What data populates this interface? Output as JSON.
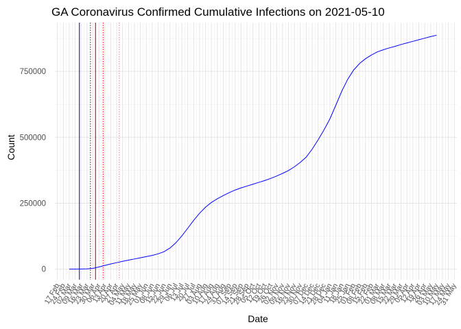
{
  "chart_data": {
    "type": "line",
    "title": "GA Coronavirus Confirmed Cumulative Infections on 2021-05-10",
    "xlabel": "Date",
    "ylabel": "Count",
    "grid": true,
    "legend": "none",
    "xlim": [
      "2020-02-14",
      "2021-06-03"
    ],
    "ylim": [
      -40000,
      935000
    ],
    "y_ticks": [
      0,
      250000,
      500000,
      750000
    ],
    "y_tick_labels": [
      "0",
      "250000",
      "500000",
      "750000"
    ],
    "x_ticks": [
      "2020-02-17",
      "2020-02-24",
      "2020-03-02",
      "2020-03-09",
      "2020-03-16",
      "2020-03-23",
      "2020-03-30",
      "2020-04-06",
      "2020-04-13",
      "2020-04-20",
      "2020-04-27",
      "2020-05-04",
      "2020-05-11",
      "2020-05-18",
      "2020-05-25",
      "2020-06-01",
      "2020-06-08",
      "2020-06-15",
      "2020-06-22",
      "2020-06-29",
      "2020-07-06",
      "2020-07-13",
      "2020-07-20",
      "2020-07-27",
      "2020-08-03",
      "2020-08-10",
      "2020-08-17",
      "2020-08-24",
      "2020-08-31",
      "2020-09-07",
      "2020-09-14",
      "2020-09-21",
      "2020-09-28",
      "2020-10-05",
      "2020-10-12",
      "2020-10-19",
      "2020-10-26",
      "2020-11-02",
      "2020-11-09",
      "2020-11-16",
      "2020-11-23",
      "2020-11-30",
      "2020-12-07",
      "2020-12-14",
      "2020-12-21",
      "2020-12-28",
      "2021-01-04",
      "2021-01-11",
      "2021-01-18",
      "2021-01-25",
      "2021-02-01",
      "2021-02-08",
      "2021-02-15",
      "2021-02-22",
      "2021-03-01",
      "2021-03-08",
      "2021-03-15",
      "2021-03-22",
      "2021-03-29",
      "2021-04-05",
      "2021-04-12",
      "2021-04-19",
      "2021-04-26",
      "2021-05-03",
      "2021-05-10",
      "2021-05-17",
      "2021-05-24",
      "2021-05-31"
    ],
    "x_tick_labels": [
      "17 Feb",
      "24 Feb",
      "02 Mar",
      "09 Mar",
      "16 Mar",
      "23 Mar",
      "30 Mar",
      "06 Apr",
      "13 Apr",
      "20 Apr",
      "27 Apr",
      "04 May",
      "11 May",
      "18 May",
      "25 May",
      "01 Jun",
      "08 Jun",
      "15 Jun",
      "22 Jun",
      "29 Jun",
      "06 Jul",
      "13 Jul",
      "20 Jul",
      "27 Jul",
      "03 Aug",
      "10 Aug",
      "17 Aug",
      "24 Aug",
      "31 Aug",
      "07 Sep",
      "14 Sep",
      "21 Sep",
      "28 Sep",
      "05 Oct",
      "12 Oct",
      "19 Oct",
      "26 Oct",
      "02 Nov",
      "09 Nov",
      "16 Nov",
      "23 Nov",
      "30 Nov",
      "07 Dec",
      "14 Dec",
      "21 Dec",
      "28 Dec",
      "04 Jan",
      "11 Jan",
      "18 Jan",
      "25 Jan",
      "01 Feb",
      "08 Feb",
      "15 Feb",
      "22 Feb",
      "01 Mar",
      "08 Mar",
      "15 Mar",
      "22 Mar",
      "29 Mar",
      "05 Apr",
      "12 Apr",
      "19 Apr",
      "26 Apr",
      "03 May",
      "10 May",
      "17 May",
      "24 May",
      "31 May"
    ],
    "series": [
      {
        "color": "#0000ff",
        "points": [
          [
            "2020-03-02",
            0
          ],
          [
            "2020-03-09",
            50
          ],
          [
            "2020-03-16",
            150
          ],
          [
            "2020-03-23",
            800
          ],
          [
            "2020-03-30",
            3000
          ],
          [
            "2020-04-06",
            8000
          ],
          [
            "2020-04-13",
            14000
          ],
          [
            "2020-04-20",
            19500
          ],
          [
            "2020-04-27",
            24500
          ],
          [
            "2020-05-04",
            29500
          ],
          [
            "2020-05-11",
            34000
          ],
          [
            "2020-05-18",
            38500
          ],
          [
            "2020-05-25",
            43000
          ],
          [
            "2020-06-01",
            47500
          ],
          [
            "2020-06-08",
            52000
          ],
          [
            "2020-06-15",
            58000
          ],
          [
            "2020-06-22",
            66000
          ],
          [
            "2020-06-29",
            80000
          ],
          [
            "2020-07-06",
            100000
          ],
          [
            "2020-07-13",
            126000
          ],
          [
            "2020-07-20",
            155000
          ],
          [
            "2020-07-27",
            185000
          ],
          [
            "2020-08-03",
            212000
          ],
          [
            "2020-08-10",
            235000
          ],
          [
            "2020-08-17",
            253000
          ],
          [
            "2020-08-24",
            267000
          ],
          [
            "2020-08-31",
            279000
          ],
          [
            "2020-09-07",
            290000
          ],
          [
            "2020-09-14",
            300000
          ],
          [
            "2020-09-21",
            308000
          ],
          [
            "2020-09-28",
            315000
          ],
          [
            "2020-10-05",
            322000
          ],
          [
            "2020-10-12",
            329000
          ],
          [
            "2020-10-19",
            336000
          ],
          [
            "2020-10-26",
            344000
          ],
          [
            "2020-11-02",
            353000
          ],
          [
            "2020-11-09",
            363000
          ],
          [
            "2020-11-16",
            374000
          ],
          [
            "2020-11-23",
            388000
          ],
          [
            "2020-11-30",
            405000
          ],
          [
            "2020-12-07",
            425000
          ],
          [
            "2020-12-14",
            455000
          ],
          [
            "2020-12-21",
            490000
          ],
          [
            "2020-12-28",
            528000
          ],
          [
            "2021-01-04",
            570000
          ],
          [
            "2021-01-11",
            622000
          ],
          [
            "2021-01-18",
            675000
          ],
          [
            "2021-01-25",
            720000
          ],
          [
            "2021-02-01",
            755000
          ],
          [
            "2021-02-08",
            780000
          ],
          [
            "2021-02-15",
            798000
          ],
          [
            "2021-02-22",
            812000
          ],
          [
            "2021-03-01",
            824000
          ],
          [
            "2021-03-08",
            832000
          ],
          [
            "2021-03-15",
            839000
          ],
          [
            "2021-03-22",
            845000
          ],
          [
            "2021-03-29",
            852000
          ],
          [
            "2021-04-05",
            858000
          ],
          [
            "2021-04-12",
            864000
          ],
          [
            "2021-04-19",
            870000
          ],
          [
            "2021-04-26",
            876000
          ],
          [
            "2021-05-03",
            882000
          ],
          [
            "2021-05-10",
            887000
          ]
        ]
      }
    ],
    "vlines": [
      {
        "date": "2020-03-14",
        "color": "#00008b",
        "style": "solid"
      },
      {
        "date": "2020-03-27",
        "color": "#8b0000",
        "style": "dotted"
      },
      {
        "date": "2020-04-02",
        "color": "#8b0000",
        "style": "solid"
      },
      {
        "date": "2020-04-11",
        "color": "#ff0000",
        "style": "dotted"
      },
      {
        "date": "2020-04-30",
        "color": "#ff7f7f",
        "style": "dotted"
      }
    ]
  }
}
